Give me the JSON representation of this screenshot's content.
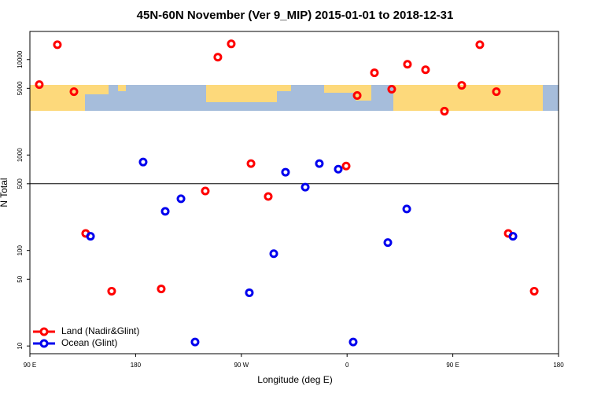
{
  "chart_data": {
    "type": "scatter",
    "title": "45N-60N November (Ver 9_MIP)   2015-01-01 to 2018-12-31",
    "x_label": "Longitude (deg E)",
    "y_label": "N Total",
    "xlim": [
      90,
      540
    ],
    "xticks": [
      {
        "value": 90,
        "label": "90 E"
      },
      180,
      {
        "value": 270,
        "label": "90 W"
      },
      {
        "value": 360,
        "label": "0"
      },
      {
        "value": 450,
        "label": "90 E"
      },
      {
        "value": 540,
        "label": "180"
      }
    ],
    "ylim": [
      8.3,
      19700
    ],
    "yticks": [
      10,
      50,
      100,
      500,
      1000,
      5000,
      10000
    ],
    "log_y": true,
    "hline": 500,
    "legend": "bottom-left",
    "series": [
      {
        "name": "Land (Nadir&Glint)",
        "color": "#ff0000",
        "x": [
          98,
          113.4,
          127.5,
          137.5,
          159.6,
          201.8,
          239.3,
          250,
          261.4,
          278.2,
          292.9,
          359.2,
          368.6,
          383.3,
          398,
          411.4,
          426.8,
          442.9,
          457.6,
          473,
          487.1,
          497.2,
          519.3
        ],
        "values": [
          5470,
          14300,
          4610,
          151,
          37.5,
          39.6,
          420,
          10600,
          14600,
          813,
          368,
          767,
          4200,
          7260,
          4890,
          8930,
          7820,
          2880,
          5370,
          14300,
          4610,
          151,
          37.5
        ]
      },
      {
        "name": "Ocean (Glint)",
        "color": "#0000ee",
        "x": [
          141.6,
          186.4,
          205.2,
          218.6,
          230.6,
          276.8,
          297.6,
          307.6,
          324.4,
          336.4,
          352.5,
          365.2,
          394.7,
          410.8,
          501.2
        ],
        "values": [
          141,
          844,
          257,
          348,
          11,
          36.1,
          92.7,
          661,
          461,
          813,
          711,
          11,
          121,
          272,
          141
        ]
      }
    ]
  }
}
